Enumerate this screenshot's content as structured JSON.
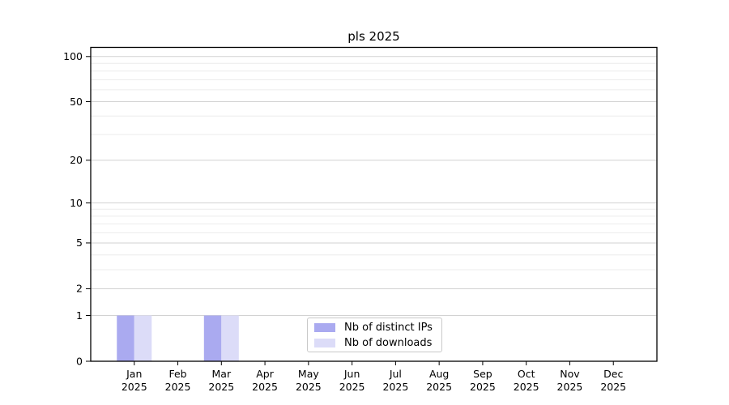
{
  "figure": {
    "background": "#ffffff"
  },
  "chart_data": {
    "type": "bar",
    "title": "pls 2025",
    "categories": [
      "Jan",
      "Feb",
      "Mar",
      "Apr",
      "May",
      "Jun",
      "Jul",
      "Aug",
      "Sep",
      "Oct",
      "Nov",
      "Dec"
    ],
    "year_label": "2025",
    "series": [
      {
        "name": "Nb of distinct IPs",
        "color": "#aaaaf0",
        "values": [
          1,
          0,
          1,
          0,
          0,
          0,
          0,
          0,
          0,
          0,
          0,
          0
        ]
      },
      {
        "name": "Nb of downloads",
        "color": "#dcdcf8",
        "values": [
          1,
          0,
          1,
          0,
          0,
          0,
          0,
          0,
          0,
          0,
          0,
          0
        ]
      }
    ],
    "xlabel": "",
    "ylabel": "",
    "y_scale": "log1p",
    "y_ticks": [
      0,
      1,
      2,
      5,
      10,
      20,
      50,
      100
    ],
    "y_minor_gridlines": [
      3,
      4,
      6,
      7,
      8,
      9,
      30,
      40,
      60,
      70,
      80,
      90
    ],
    "ylim": [
      0,
      115
    ],
    "grid": true,
    "legend_position": "lower center",
    "grid_minor_color": "#ececec",
    "grid_major_color": "#d2d2d2",
    "spine_color": "#000000"
  }
}
